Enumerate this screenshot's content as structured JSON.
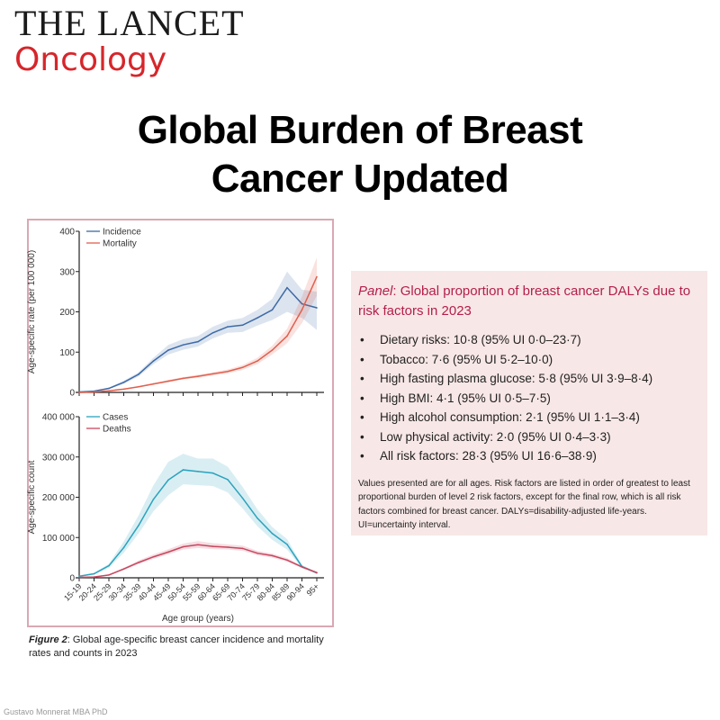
{
  "logo": {
    "line1": "THE LANCET",
    "line2": "Oncology"
  },
  "title": {
    "line1": "Global Burden of Breast",
    "line2": "Cancer Updated"
  },
  "figure_caption": {
    "label": "Figure 2",
    "text": ": Global age-specific breast cancer incidence and mortality rates and counts in 2023"
  },
  "colors": {
    "incidence": "#3d6aa6",
    "mortality": "#e0604f",
    "cases": "#2aa3bd",
    "deaths": "#c8465e",
    "frame": "#d9a8b3",
    "panel_bg": "#f7e7e6",
    "panel_title": "#b41f4a"
  },
  "chart_data": [
    {
      "type": "line",
      "categories": [
        "15-19",
        "20-24",
        "25-29",
        "30-34",
        "35-39",
        "40-44",
        "45-49",
        "50-54",
        "55-59",
        "60-64",
        "65-69",
        "70-74",
        "75-79",
        "80-84",
        "85-89",
        "90-94",
        "95+"
      ],
      "ylabel": "Age-specific rate (per 100 000)",
      "ylim": [
        0,
        400
      ],
      "yticks": [
        "0",
        "100",
        "200",
        "300",
        "400"
      ],
      "legend": "top-left",
      "series": [
        {
          "name": "Incidence",
          "values": [
            1,
            3,
            10,
            25,
            45,
            78,
            105,
            118,
            126,
            148,
            163,
            167,
            185,
            205,
            260,
            220,
            210
          ],
          "lower": [
            0,
            2,
            8,
            21,
            40,
            70,
            94,
            106,
            114,
            134,
            148,
            150,
            166,
            180,
            200,
            185,
            155
          ],
          "upper": [
            2,
            4,
            12,
            29,
            50,
            86,
            118,
            132,
            140,
            163,
            178,
            185,
            205,
            232,
            300,
            255,
            250
          ]
        },
        {
          "name": "Mortality",
          "values": [
            0,
            1,
            4,
            8,
            14,
            21,
            28,
            35,
            40,
            46,
            52,
            62,
            78,
            105,
            140,
            205,
            287
          ],
          "lower": [
            0,
            1,
            3,
            7,
            12,
            19,
            25,
            32,
            36,
            42,
            47,
            56,
            70,
            94,
            122,
            172,
            240
          ],
          "upper": [
            0,
            1,
            5,
            9,
            16,
            23,
            31,
            38,
            44,
            50,
            57,
            68,
            86,
            116,
            158,
            238,
            335
          ]
        }
      ]
    },
    {
      "type": "line",
      "categories": [
        "15-19",
        "20-24",
        "25-29",
        "30-34",
        "35-39",
        "40-44",
        "45-49",
        "50-54",
        "55-59",
        "60-64",
        "65-69",
        "70-74",
        "75-79",
        "80-84",
        "85-89",
        "90-94",
        "95+"
      ],
      "xlabel": "Age group (years)",
      "ylabel": "Age-specific count",
      "ylim": [
        0,
        400000
      ],
      "yticks": [
        "0",
        "100 000",
        "200 000",
        "300 000",
        "400 000"
      ],
      "legend": "top-left",
      "series": [
        {
          "name": "Cases",
          "values": [
            4000,
            10000,
            30000,
            75000,
            130000,
            195000,
            243000,
            268000,
            264000,
            260000,
            244000,
            198000,
            148000,
            110000,
            83000,
            28000,
            12000
          ],
          "lower": [
            3000,
            8000,
            25000,
            62000,
            110000,
            165000,
            205000,
            232000,
            230000,
            228000,
            212000,
            172000,
            128000,
            94000,
            70000,
            24000,
            10000
          ],
          "upper": [
            5000,
            12000,
            35000,
            90000,
            155000,
            230000,
            288000,
            308000,
            296000,
            296000,
            276000,
            226000,
            170000,
            126000,
            96000,
            32000,
            14000
          ]
        },
        {
          "name": "Deaths",
          "values": [
            1000,
            2000,
            7000,
            22000,
            38000,
            52000,
            64000,
            77000,
            82000,
            78000,
            76000,
            73000,
            61000,
            55000,
            44000,
            27000,
            13000
          ],
          "lower": [
            800,
            1600,
            6000,
            19000,
            34000,
            47000,
            58000,
            70000,
            74000,
            71000,
            70000,
            67000,
            56000,
            50000,
            40000,
            24000,
            11000
          ],
          "upper": [
            1200,
            2400,
            8000,
            25000,
            43000,
            58000,
            71000,
            85000,
            91000,
            86000,
            83000,
            80000,
            67000,
            60000,
            49000,
            30000,
            15000
          ]
        }
      ]
    }
  ],
  "panel": {
    "title_label": "Panel",
    "title_text": ": Global proportion of breast cancer DALYs due to risk factors in 2023",
    "items": [
      "Dietary risks: 10·8 (95% UI 0·0–23·7)",
      "Tobacco: 7·6 (95% UI 5·2–10·0)",
      "High fasting plasma glucose: 5·8 (95% UI 3·9–8·4)",
      "High BMI: 4·1 (95% UI 0·5–7·5)",
      "High alcohol consumption: 2·1 (95% UI 1·1–3·4)",
      "Low physical activity: 2·0 (95% UI 0·4–3·3)",
      "All risk factors: 28·3 (95% UI 16·6–38·9)"
    ],
    "note": "Values presented are for all ages. Risk factors are listed in order of greatest to least proportional burden of level 2 risk factors, except for the final row, which is all risk factors combined for breast cancer. DALYs=disability-adjusted life-years. UI=uncertainty interval."
  },
  "footer": "Gustavo Monnerat MBA PhD"
}
